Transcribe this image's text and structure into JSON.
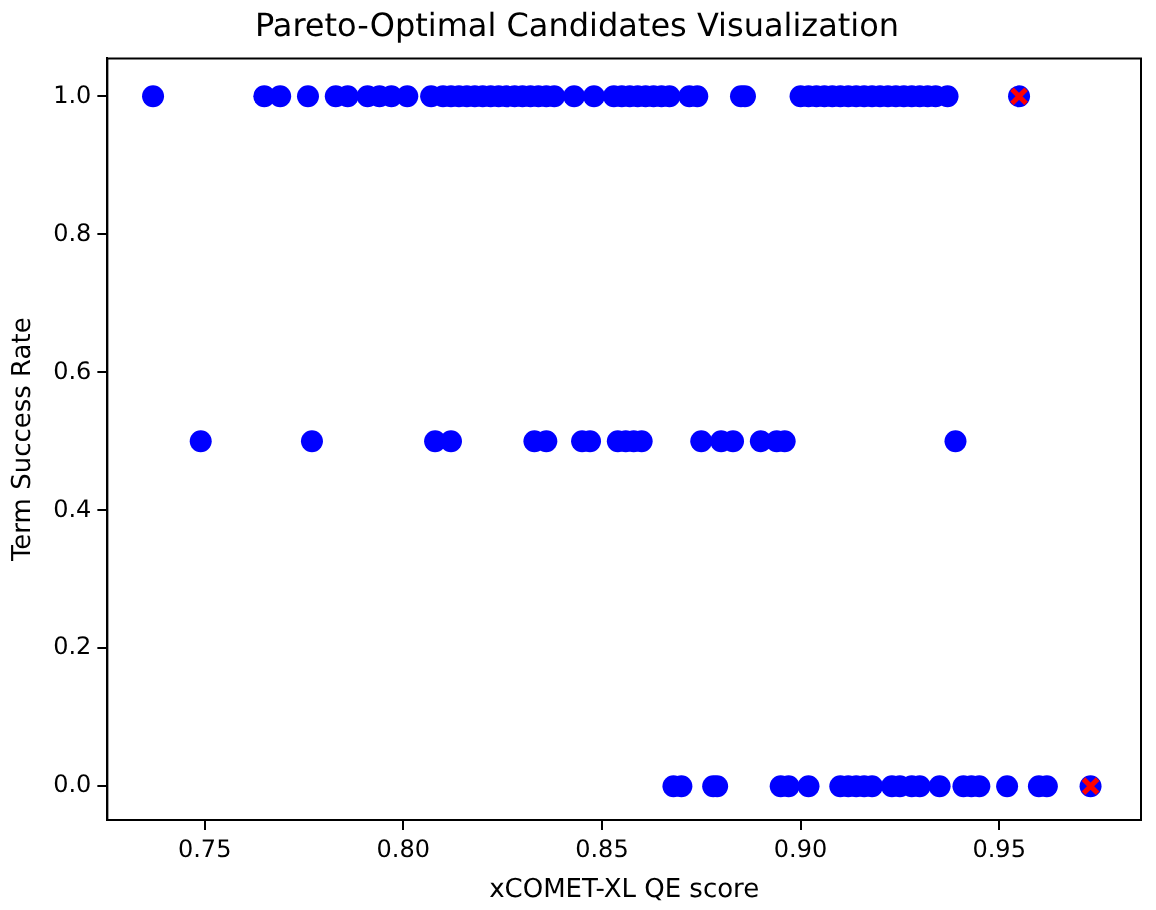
{
  "chart_data": {
    "type": "scatter",
    "title": "Pareto-Optimal Candidates Visualization",
    "xlabel": "xCOMET-XL QE score",
    "ylabel": "Term Success Rate",
    "xlim": [
      0.7255,
      0.9857
    ],
    "xticks": [
      {
        "value": 0.75,
        "label": "0.75"
      },
      {
        "value": 0.8,
        "label": "0.80"
      },
      {
        "value": 0.85,
        "label": "0.85"
      },
      {
        "value": 0.9,
        "label": "0.90"
      },
      {
        "value": 0.95,
        "label": "0.95"
      }
    ],
    "ylim": [
      -0.049,
      1.055
    ],
    "yticks": [
      {
        "value": 0,
        "label": "0.0"
      },
      {
        "value": 0.2,
        "label": "0.2"
      },
      {
        "value": 0.4,
        "label": "0.4"
      },
      {
        "value": 0.6,
        "label": "0.6"
      },
      {
        "value": 0.8,
        "label": "0.8"
      },
      {
        "value": 1,
        "label": "1.0"
      }
    ],
    "grid": false,
    "legend": false,
    "series": [
      {
        "color": "#0000ff",
        "marker": "circle",
        "x": [
          0.737,
          0.765,
          0.769,
          0.776,
          0.783,
          0.786,
          0.791,
          0.794,
          0.797,
          0.801,
          0.807,
          0.81,
          0.812,
          0.814,
          0.816,
          0.818,
          0.82,
          0.822,
          0.824,
          0.826,
          0.828,
          0.83,
          0.832,
          0.834,
          0.836,
          0.838,
          0.843,
          0.848,
          0.853,
          0.855,
          0.857,
          0.859,
          0.861,
          0.863,
          0.865,
          0.867,
          0.872,
          0.874,
          0.885,
          0.886,
          0.9,
          0.902,
          0.904,
          0.906,
          0.908,
          0.91,
          0.912,
          0.914,
          0.916,
          0.918,
          0.92,
          0.922,
          0.924,
          0.926,
          0.928,
          0.93,
          0.932,
          0.934,
          0.937,
          0.955,
          0.749,
          0.777,
          0.808,
          0.812,
          0.833,
          0.836,
          0.845,
          0.847,
          0.854,
          0.856,
          0.858,
          0.86,
          0.875,
          0.88,
          0.883,
          0.89,
          0.894,
          0.896,
          0.939,
          0.868,
          0.87,
          0.878,
          0.879,
          0.895,
          0.897,
          0.902,
          0.91,
          0.912,
          0.914,
          0.916,
          0.918,
          0.923,
          0.925,
          0.928,
          0.93,
          0.935,
          0.941,
          0.943,
          0.945,
          0.952,
          0.96,
          0.962,
          0.973
        ],
        "values": [
          1,
          1,
          1,
          1,
          1,
          1,
          1,
          1,
          1,
          1,
          1,
          1,
          1,
          1,
          1,
          1,
          1,
          1,
          1,
          1,
          1,
          1,
          1,
          1,
          1,
          1,
          1,
          1,
          1,
          1,
          1,
          1,
          1,
          1,
          1,
          1,
          1,
          1,
          1,
          1,
          1,
          1,
          1,
          1,
          1,
          1,
          1,
          1,
          1,
          1,
          1,
          1,
          1,
          1,
          1,
          1,
          1,
          1,
          1,
          1,
          0.5,
          0.5,
          0.5,
          0.5,
          0.5,
          0.5,
          0.5,
          0.5,
          0.5,
          0.5,
          0.5,
          0.5,
          0.5,
          0.5,
          0.5,
          0.5,
          0.5,
          0.5,
          0.5,
          0,
          0,
          0,
          0,
          0,
          0,
          0,
          0,
          0,
          0,
          0,
          0,
          0,
          0,
          0,
          0,
          0,
          0,
          0,
          0,
          0,
          0,
          0,
          0
        ]
      },
      {
        "color": "#ff0000",
        "marker": "cross",
        "x": [
          0.955,
          0.973
        ],
        "values": [
          1,
          0
        ]
      }
    ]
  }
}
